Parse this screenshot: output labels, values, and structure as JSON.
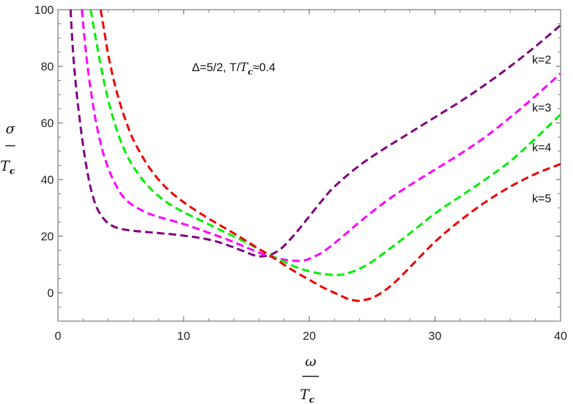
{
  "chart_data": {
    "type": "line",
    "annotation": {
      "text_part1": "Δ=5/2,  T/",
      "text_T": "T",
      "text_sub": "c",
      "text_part2": "≈0.4"
    },
    "xlabel": {
      "main": "ω",
      "den": "T",
      "den_sub": "c"
    },
    "ylabel": {
      "main": "σ",
      "den": "T",
      "den_sub": "c"
    },
    "xlim": [
      0,
      40
    ],
    "ylim": [
      -10,
      100
    ],
    "xticks": [
      0,
      10,
      20,
      30,
      40
    ],
    "yticks": [
      0,
      20,
      40,
      60,
      80,
      100
    ],
    "grid": false,
    "line_style": "dashed",
    "series": [
      {
        "name": "k=2",
        "color": "#800080",
        "x": [
          1.0,
          1.2,
          1.5,
          2.0,
          2.5,
          3.0,
          3.5,
          4.0,
          4.5,
          5.0,
          6.0,
          7.0,
          8.0,
          9.0,
          10.0,
          11.0,
          12.0,
          13.0,
          14.0,
          15.0,
          15.5,
          16.0,
          16.5,
          17.0,
          17.5,
          18.0,
          19.0,
          20.0,
          21.0,
          22.0,
          24.0,
          26.0,
          28.0,
          30.0,
          32.0,
          34.0,
          36.0,
          38.0,
          40.0
        ],
        "y": [
          100,
          85,
          70,
          52,
          39,
          31,
          27,
          24.5,
          23.3,
          22.6,
          21.9,
          21.5,
          21.1,
          20.7,
          20.2,
          19.6,
          18.8,
          17.6,
          16.0,
          14.3,
          13.4,
          12.9,
          13.0,
          13.6,
          14.8,
          16.6,
          21.5,
          27.0,
          32.5,
          37.5,
          45.0,
          51.0,
          56.5,
          62.0,
          67.5,
          73.5,
          80.0,
          87.0,
          94.5
        ]
      },
      {
        "name": "k=3",
        "color": "#ff00ff",
        "x": [
          1.9,
          2.2,
          2.5,
          3.0,
          3.5,
          4.0,
          4.5,
          5.0,
          5.5,
          6.0,
          7.0,
          8.0,
          9.0,
          10.0,
          11.0,
          12.0,
          13.0,
          14.0,
          15.0,
          16.0,
          17.0,
          18.0,
          19.0,
          19.5,
          20.0,
          21.0,
          22.0,
          23.0,
          24.0,
          26.0,
          28.0,
          30.0,
          32.0,
          34.0,
          36.0,
          38.0,
          40.0
        ],
        "y": [
          100,
          86,
          75,
          61,
          51,
          44,
          39,
          35,
          32.5,
          30.8,
          28.4,
          26.8,
          25.6,
          24.3,
          22.8,
          21.2,
          19.6,
          17.9,
          16.0,
          14.2,
          12.7,
          11.7,
          11.3,
          11.4,
          12.0,
          14.2,
          17.5,
          21.2,
          25.0,
          32.0,
          38.0,
          43.5,
          49.0,
          55.0,
          62.0,
          69.5,
          77.5
        ]
      },
      {
        "name": "k=4",
        "color": "#00ee00",
        "x": [
          2.6,
          3.0,
          3.5,
          4.0,
          4.5,
          5.0,
          5.5,
          6.0,
          7.0,
          8.0,
          9.0,
          10.0,
          11.0,
          12.0,
          13.0,
          14.0,
          15.0,
          16.0,
          17.0,
          18.0,
          19.0,
          20.0,
          21.0,
          22.0,
          22.5,
          23.0,
          24.0,
          25.0,
          26.0,
          28.0,
          30.0,
          32.0,
          34.0,
          36.0,
          38.0,
          40.0
        ],
        "y": [
          100,
          90,
          78,
          68,
          60,
          53.5,
          48.5,
          44.5,
          38.5,
          34.2,
          31.0,
          28.5,
          26.3,
          24.2,
          22.0,
          19.9,
          17.7,
          15.4,
          13.1,
          11.0,
          9.0,
          7.6,
          6.7,
          6.3,
          6.4,
          6.8,
          8.5,
          11.0,
          14.2,
          21.0,
          28.0,
          34.0,
          40.0,
          46.5,
          54.5,
          63.0
        ]
      },
      {
        "name": "k=5",
        "color": "#ee0000",
        "x": [
          3.4,
          3.7,
          4.0,
          4.5,
          5.0,
          5.5,
          6.0,
          7.0,
          8.0,
          9.0,
          10.0,
          11.0,
          12.0,
          13.0,
          14.0,
          15.0,
          16.0,
          17.0,
          18.0,
          19.0,
          20.0,
          21.0,
          22.0,
          23.0,
          23.5,
          24.0,
          25.0,
          26.0,
          27.0,
          28.0,
          30.0,
          32.0,
          34.0,
          36.0,
          38.0,
          40.0
        ],
        "y": [
          100,
          92,
          84,
          74,
          66,
          59.5,
          54,
          46,
          40,
          35.5,
          32.0,
          29.0,
          26.2,
          23.6,
          21.0,
          18.3,
          15.5,
          12.8,
          9.9,
          7.1,
          4.6,
          2.1,
          0.0,
          -2.0,
          -2.6,
          -2.8,
          -1.8,
          0.8,
          4.5,
          9.0,
          18.0,
          25.5,
          32.0,
          37.5,
          42.0,
          45.5
        ]
      }
    ],
    "series_labels": [
      {
        "text": "k=2",
        "at_x": 38.5,
        "at_y": 81
      },
      {
        "text": "k=3",
        "at_x": 38.5,
        "at_y": 64
      },
      {
        "text": "k=4",
        "at_x": 38.5,
        "at_y": 50
      },
      {
        "text": "k=5",
        "at_x": 38.5,
        "at_y": 32
      }
    ]
  }
}
